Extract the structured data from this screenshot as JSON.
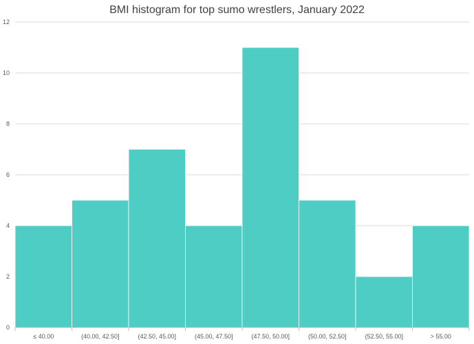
{
  "chart_data": {
    "type": "bar",
    "title": "BMI histogram for top sumo wrestlers, January 2022",
    "xlabel": "",
    "ylabel": "",
    "categories": [
      "≤ 40.00",
      "(40.00, 42.50]",
      "(42.50, 45.00]",
      "(45.00, 47.50]",
      "(47.50, 50.00]",
      "(50.00, 52.50]",
      "(52.50, 55.00]",
      "> 55.00"
    ],
    "values": [
      4,
      5,
      7,
      4,
      11,
      5,
      2,
      4
    ],
    "ylim": [
      0,
      12
    ],
    "yticks": [
      0,
      2,
      4,
      6,
      8,
      10,
      12
    ],
    "grid": true,
    "bar_color": "#4ECDC4",
    "gridline_color": "#D9D9D9",
    "axis_color": "#BFBFBF"
  }
}
